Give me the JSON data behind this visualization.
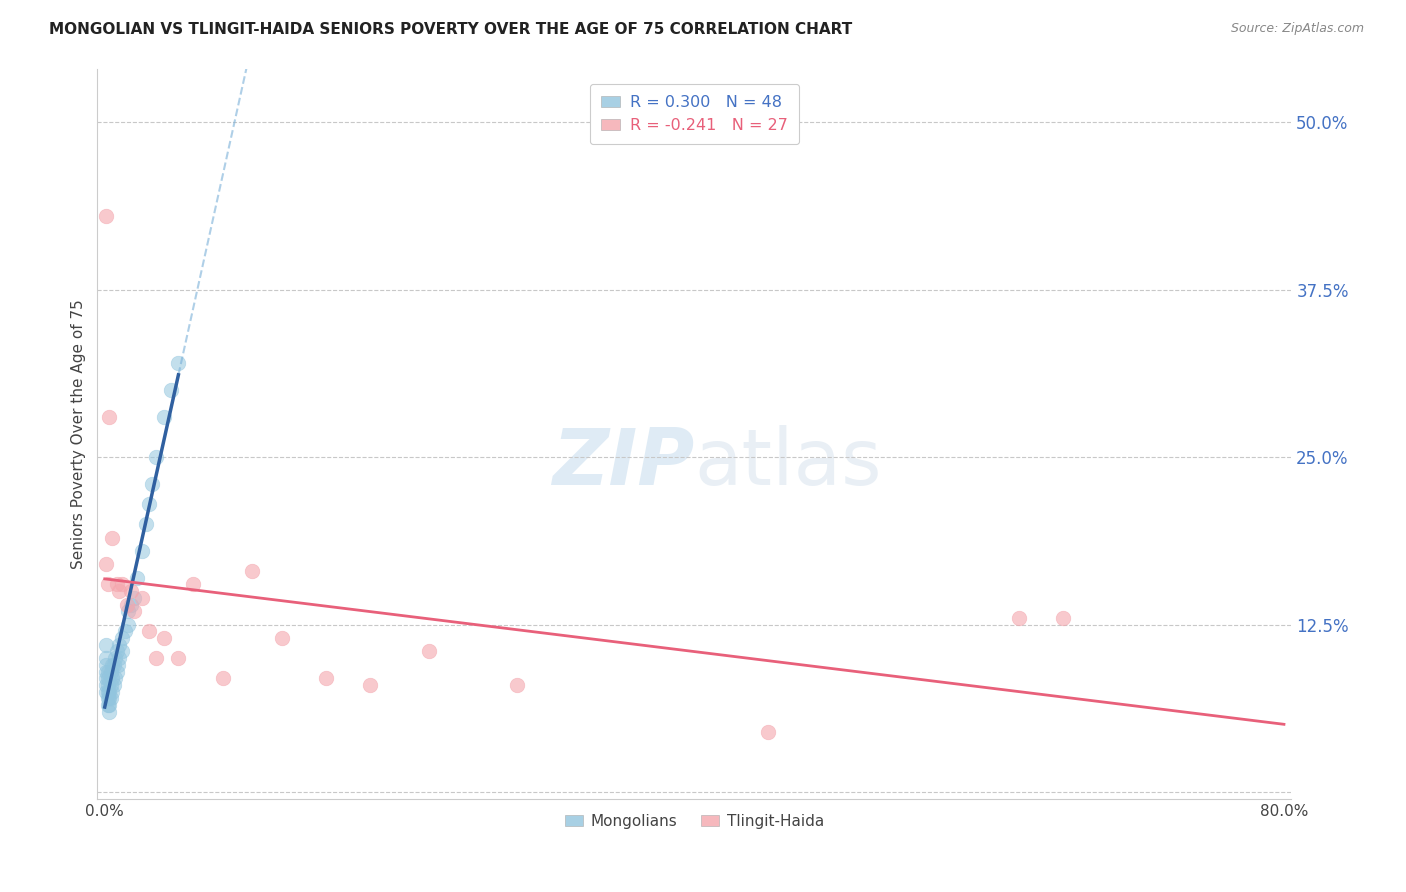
{
  "title": "MONGOLIAN VS TLINGIT-HAIDA SENIORS POVERTY OVER THE AGE OF 75 CORRELATION CHART",
  "source": "Source: ZipAtlas.com",
  "ylabel": "Seniors Poverty Over the Age of 75",
  "xlim": [
    0.0,
    0.8
  ],
  "ylim": [
    -0.005,
    0.54
  ],
  "yticks": [
    0.0,
    0.125,
    0.25,
    0.375,
    0.5
  ],
  "ytick_labels": [
    "",
    "12.5%",
    "25.0%",
    "37.5%",
    "50.0%"
  ],
  "xticks": [
    0.0,
    0.1,
    0.2,
    0.3,
    0.4,
    0.5,
    0.6,
    0.7,
    0.8
  ],
  "xtick_labels": [
    "0.0%",
    "",
    "",
    "",
    "",
    "",
    "",
    "",
    "80.0%"
  ],
  "mongolian_R": 0.3,
  "mongolian_N": 48,
  "tlingit_R": -0.241,
  "tlingit_N": 27,
  "mongolian_color": "#92C5DE",
  "tlingit_color": "#F4A6AD",
  "mongolian_line_color": "#3060A0",
  "tlingit_line_color": "#E8607A",
  "mongolian_x": [
    0.001,
    0.001,
    0.001,
    0.001,
    0.001,
    0.001,
    0.001,
    0.002,
    0.002,
    0.002,
    0.002,
    0.002,
    0.002,
    0.003,
    0.003,
    0.003,
    0.003,
    0.004,
    0.004,
    0.004,
    0.005,
    0.005,
    0.005,
    0.006,
    0.006,
    0.007,
    0.007,
    0.008,
    0.008,
    0.009,
    0.01,
    0.01,
    0.012,
    0.012,
    0.014,
    0.016,
    0.016,
    0.018,
    0.02,
    0.022,
    0.025,
    0.028,
    0.03,
    0.032,
    0.035,
    0.04,
    0.045,
    0.05
  ],
  "mongolian_y": [
    0.075,
    0.08,
    0.085,
    0.09,
    0.095,
    0.1,
    0.11,
    0.065,
    0.07,
    0.075,
    0.08,
    0.085,
    0.09,
    0.06,
    0.065,
    0.07,
    0.075,
    0.07,
    0.08,
    0.09,
    0.075,
    0.085,
    0.095,
    0.08,
    0.095,
    0.085,
    0.1,
    0.09,
    0.105,
    0.095,
    0.1,
    0.11,
    0.105,
    0.115,
    0.12,
    0.125,
    0.135,
    0.14,
    0.145,
    0.16,
    0.18,
    0.2,
    0.215,
    0.23,
    0.25,
    0.28,
    0.3,
    0.32
  ],
  "tlingit_x": [
    0.001,
    0.001,
    0.002,
    0.003,
    0.005,
    0.008,
    0.01,
    0.012,
    0.015,
    0.018,
    0.02,
    0.025,
    0.03,
    0.035,
    0.04,
    0.05,
    0.06,
    0.08,
    0.1,
    0.12,
    0.15,
    0.18,
    0.22,
    0.28,
    0.45,
    0.62,
    0.65
  ],
  "tlingit_y": [
    0.43,
    0.17,
    0.155,
    0.28,
    0.19,
    0.155,
    0.15,
    0.155,
    0.14,
    0.15,
    0.135,
    0.145,
    0.12,
    0.1,
    0.115,
    0.1,
    0.155,
    0.085,
    0.165,
    0.115,
    0.085,
    0.08,
    0.105,
    0.08,
    0.045,
    0.13,
    0.13
  ],
  "watermark_zip": "ZIP",
  "watermark_atlas": "atlas",
  "background_color": "#ffffff",
  "grid_color": "#c8c8c8"
}
